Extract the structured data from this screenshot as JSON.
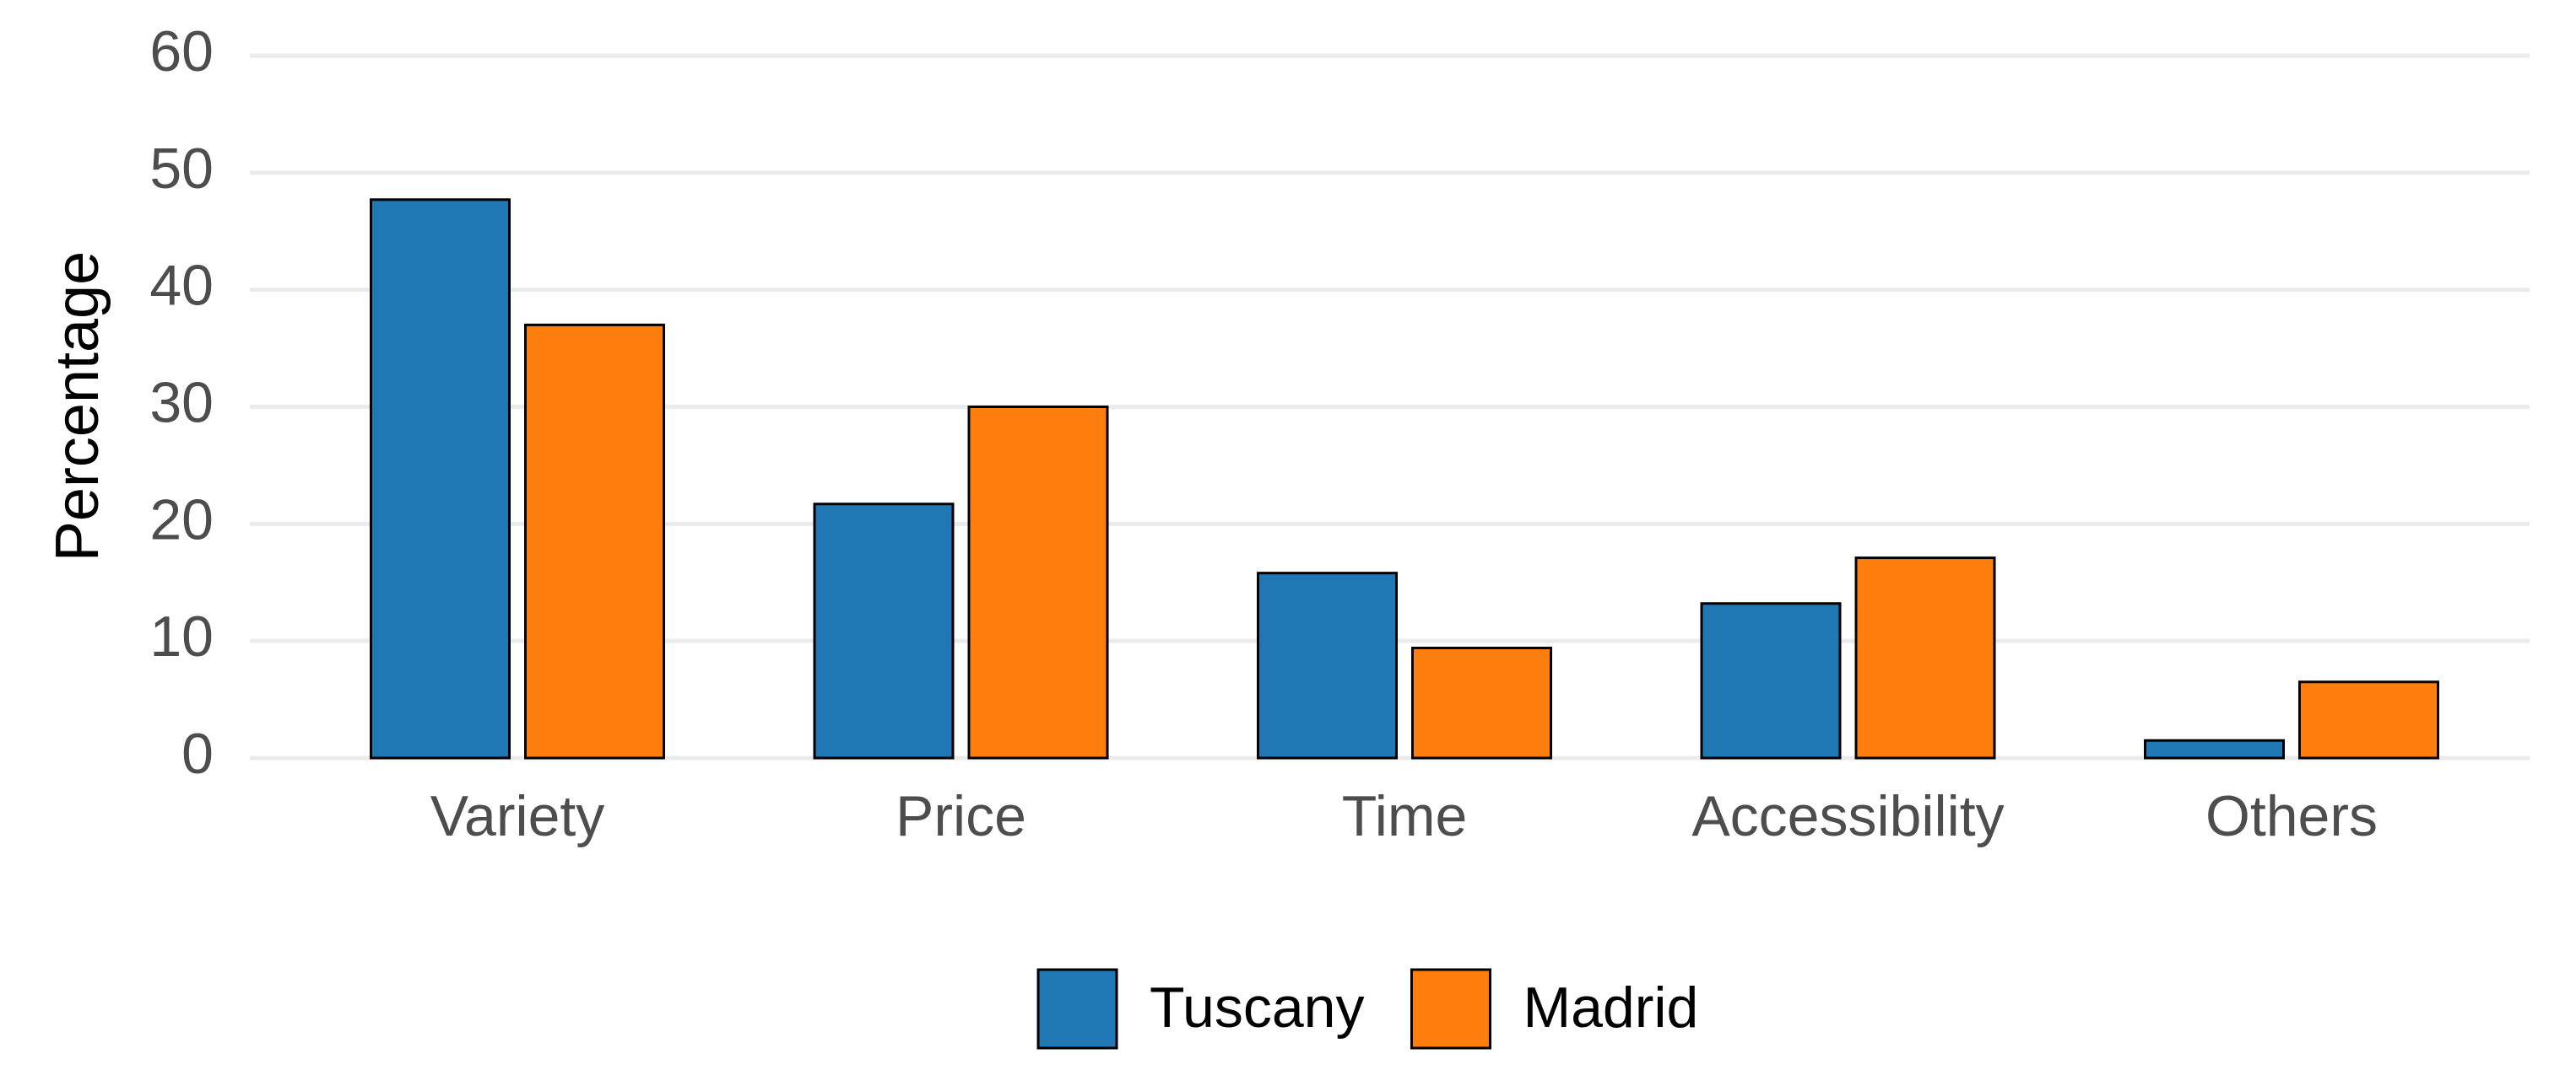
{
  "chart_data": {
    "type": "bar",
    "y_label": "Percentage",
    "categories": [
      "Variety",
      "Price",
      "Time",
      "Accessibility",
      "Others"
    ],
    "series": [
      {
        "name": "Tuscany",
        "color": "#1f77b4",
        "values": [
          47.7,
          21.7,
          15.8,
          13.2,
          1.5
        ]
      },
      {
        "name": "Madrid",
        "color": "#ff7f0e",
        "values": [
          37.0,
          30.0,
          9.4,
          17.1,
          6.5
        ]
      }
    ],
    "ylim": [
      0,
      60
    ],
    "yticks": [
      0,
      10,
      20,
      30,
      40,
      50,
      60
    ],
    "grid": true,
    "legend": "bottom"
  }
}
